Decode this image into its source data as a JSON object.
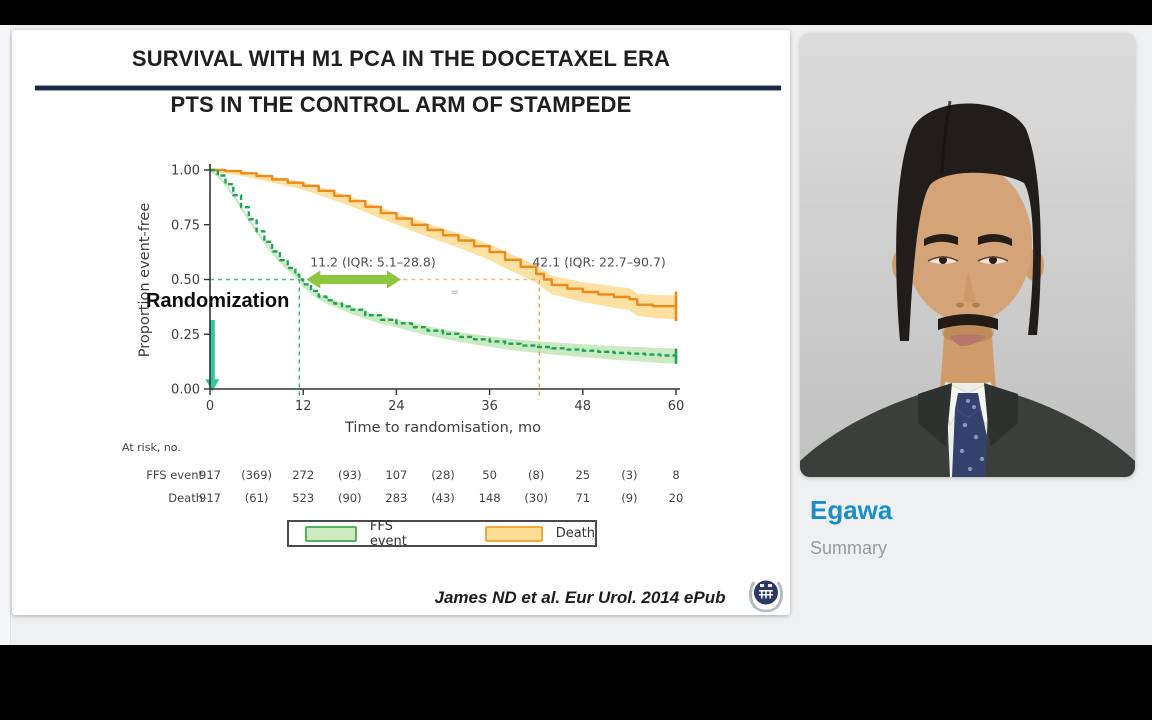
{
  "slide": {
    "title_line1": "SURVIVAL WITH M1 PCA IN THE DOCETAXEL ERA",
    "title_line2": "PTS IN THE CONTROL ARM OF STAMPEDE",
    "randomization_label": "Randomization",
    "citation": "James ND et al. Eur Urol. 2014 ePub"
  },
  "presenter": {
    "name": "Egawa",
    "subtitle": "Summary"
  },
  "chart_data": {
    "type": "line",
    "subtype": "kaplan-meier",
    "title": "",
    "xlabel": "Time to randomisation, mo",
    "ylabel": "Proportion event-free",
    "xlim": [
      0,
      60
    ],
    "ylim": [
      0,
      1
    ],
    "grid": false,
    "x_ticks": [
      0,
      12,
      24,
      36,
      48,
      60
    ],
    "y_ticks": [
      "0.00",
      "0.25",
      "0.50",
      "0.75",
      "1.00"
    ],
    "series": [
      {
        "name": "Death",
        "color": "#ec8a1c",
        "band_color": "#fbd783",
        "band_opacity": 0.75,
        "dashed": false,
        "band": [
          0.008,
          0.055
        ],
        "end_tick": [
          0.31,
          0.445
        ],
        "median_months": 42.1,
        "points": [
          [
            0,
            1.0
          ],
          [
            2,
            0.995
          ],
          [
            4,
            0.985
          ],
          [
            6,
            0.972
          ],
          [
            8,
            0.957
          ],
          [
            10,
            0.942
          ],
          [
            12,
            0.928
          ],
          [
            14,
            0.905
          ],
          [
            16,
            0.882
          ],
          [
            18,
            0.858
          ],
          [
            20,
            0.832
          ],
          [
            22,
            0.803
          ],
          [
            24,
            0.778
          ],
          [
            26,
            0.75
          ],
          [
            28,
            0.726
          ],
          [
            30,
            0.702
          ],
          [
            32,
            0.678
          ],
          [
            34,
            0.652
          ],
          [
            36,
            0.625
          ],
          [
            38,
            0.59
          ],
          [
            40,
            0.558
          ],
          [
            42,
            0.525
          ],
          [
            43,
            0.5
          ],
          [
            44,
            0.475
          ],
          [
            46,
            0.458
          ],
          [
            48,
            0.443
          ],
          [
            50,
            0.432
          ],
          [
            52,
            0.42
          ],
          [
            54,
            0.41
          ],
          [
            55,
            0.385
          ],
          [
            57,
            0.378
          ],
          [
            60,
            0.372
          ]
        ]
      },
      {
        "name": "FFS event",
        "color": "#1ea355",
        "band_color": "#a9dc9b",
        "band_opacity": 0.6,
        "dashed": true,
        "band": [
          0.008,
          0.035
        ],
        "end_tick": [
          0.115,
          0.185
        ],
        "median_months": 11.2,
        "points": [
          [
            0,
            1.0
          ],
          [
            1,
            0.975
          ],
          [
            2,
            0.935
          ],
          [
            3,
            0.885
          ],
          [
            4,
            0.83
          ],
          [
            5,
            0.775
          ],
          [
            6,
            0.72
          ],
          [
            7,
            0.672
          ],
          [
            8,
            0.628
          ],
          [
            9,
            0.588
          ],
          [
            10,
            0.553
          ],
          [
            11,
            0.522
          ],
          [
            11.5,
            0.5
          ],
          [
            12,
            0.478
          ],
          [
            13,
            0.448
          ],
          [
            14,
            0.422
          ],
          [
            15,
            0.405
          ],
          [
            16,
            0.39
          ],
          [
            17,
            0.377
          ],
          [
            18,
            0.362
          ],
          [
            20,
            0.337
          ],
          [
            22,
            0.316
          ],
          [
            24,
            0.3
          ],
          [
            26,
            0.282
          ],
          [
            28,
            0.266
          ],
          [
            30,
            0.252
          ],
          [
            32,
            0.238
          ],
          [
            34,
            0.227
          ],
          [
            36,
            0.217
          ],
          [
            38,
            0.207
          ],
          [
            40,
            0.198
          ],
          [
            42,
            0.192
          ],
          [
            44,
            0.186
          ],
          [
            46,
            0.18
          ],
          [
            48,
            0.175
          ],
          [
            50,
            0.17
          ],
          [
            52,
            0.165
          ],
          [
            54,
            0.161
          ],
          [
            56,
            0.157
          ],
          [
            58,
            0.153
          ],
          [
            60,
            0.15
          ]
        ]
      }
    ],
    "reference_lines": [
      {
        "orient": "h",
        "y": 0.5,
        "x1": 0,
        "x2": 11.5,
        "color": "#41bd93"
      },
      {
        "orient": "h",
        "y": 0.5,
        "x1": 11.5,
        "x2": 42.4,
        "color": "#f3b77c"
      },
      {
        "orient": "v",
        "x": 11.5,
        "y1": 0.5,
        "y2": -0.05,
        "color": "#3fae7e"
      },
      {
        "orient": "v",
        "x": 42.4,
        "y1": 0.5,
        "y2": -0.05,
        "color": "#f29c4e"
      }
    ],
    "annotations": [
      {
        "text": "11.2 (IQR: 5.1–28.8)",
        "x": 12.9,
        "y": 0.56,
        "anchor": "start",
        "color": "#4f4f4f"
      },
      {
        "text": "42.1 (IQR: 22.7–90.7)",
        "x": 41.5,
        "y": 0.56,
        "anchor": "start",
        "color": "#4f4f4f"
      },
      {
        "text": "=",
        "x": 31.5,
        "y": 0.43,
        "anchor": "middle",
        "color": "#999999",
        "size": 10
      }
    ],
    "arrows": [
      {
        "name": "median-gap-arrow",
        "type": "double",
        "x1": 12.4,
        "x2": 24.6,
        "y": 0.5,
        "color": "#8dc63f"
      },
      {
        "name": "randomization-arrow",
        "type": "down",
        "x": 0.3,
        "y1": 0.315,
        "y2": -0.01,
        "color": "#2fc99b"
      }
    ],
    "at_risk": {
      "label": "At risk, no.",
      "rows": [
        {
          "name": "FFS event",
          "values": [
            "917",
            "(369)",
            "272",
            "(93)",
            "107",
            "(28)",
            "50",
            "(8)",
            "25",
            "(3)",
            "8"
          ]
        },
        {
          "name": "Death",
          "values": [
            "917",
            "(61)",
            "523",
            "(90)",
            "283",
            "(43)",
            "148",
            "(30)",
            "71",
            "(9)",
            "20"
          ]
        }
      ]
    },
    "legend": {
      "position": "bottom",
      "entries": [
        {
          "label": "FFS event",
          "fill": "#cfe9c3",
          "border": "#55b25c"
        },
        {
          "label": "Death",
          "fill": "#fbdf96",
          "border": "#f2a93b"
        }
      ]
    }
  }
}
